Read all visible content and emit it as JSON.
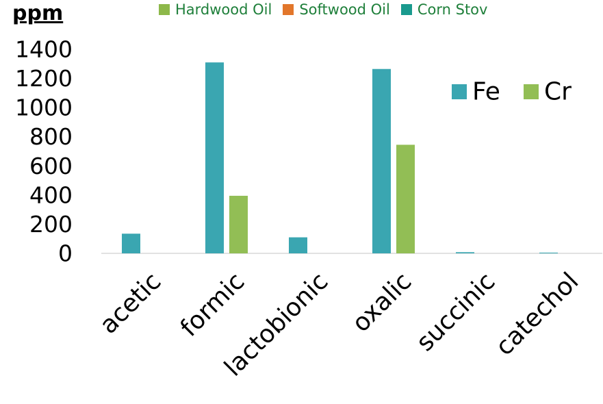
{
  "top_legend": [
    {
      "label": "Hardwood Oil",
      "color": "#8DB84A"
    },
    {
      "label": "Softwood Oil",
      "color": "#E2762B"
    },
    {
      "label": "Corn Stov",
      "color": "#1A9A8E"
    }
  ],
  "chart_data": {
    "type": "bar",
    "ylabel": "ppm",
    "xlabel": "",
    "ylim": [
      0,
      1400
    ],
    "yticks": [
      0,
      200,
      400,
      600,
      800,
      1000,
      1200,
      1400
    ],
    "categories": [
      "acetic",
      "formic",
      "lactobionic",
      "oxalic",
      "succinic",
      "catechol"
    ],
    "series": [
      {
        "name": "Fe",
        "color": "#3AA6B1",
        "values": [
          135,
          1310,
          110,
          1265,
          8,
          5
        ]
      },
      {
        "name": "Cr",
        "color": "#92BE55",
        "values": [
          0,
          395,
          0,
          745,
          0,
          0
        ]
      }
    ],
    "legend": "top-right",
    "grid": false
  }
}
